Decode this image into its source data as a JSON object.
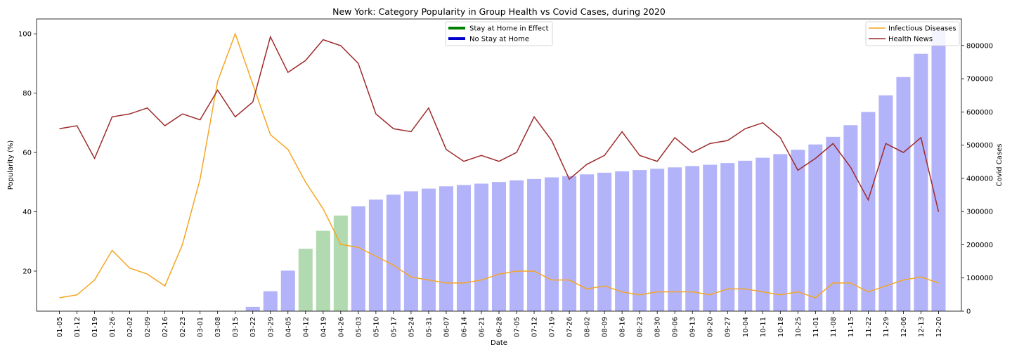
{
  "chart_data": {
    "type": "bar+line",
    "title": "New York: Category Popularity in Group Health vs Covid Cases, during 2020",
    "xlabel": "Date",
    "ylabel": "Popularity (%)",
    "y2label": "Covid Cases",
    "ylim": [
      6.5,
      105
    ],
    "y2lim": [
      0,
      880000
    ],
    "yticks": [
      20,
      40,
      60,
      80,
      100
    ],
    "y2ticks": [
      0,
      100000,
      200000,
      300000,
      400000,
      500000,
      600000,
      700000,
      800000
    ],
    "categories": [
      "01-05",
      "01-12",
      "01-19",
      "01-26",
      "02-02",
      "02-09",
      "02-16",
      "02-23",
      "03-01",
      "03-08",
      "03-15",
      "03-22",
      "03-29",
      "04-05",
      "04-12",
      "04-19",
      "04-26",
      "05-03",
      "05-10",
      "05-17",
      "05-24",
      "05-31",
      "06-07",
      "06-14",
      "06-21",
      "06-28",
      "07-05",
      "07-12",
      "07-19",
      "07-26",
      "08-02",
      "08-09",
      "08-16",
      "08-23",
      "08-30",
      "09-06",
      "09-13",
      "09-20",
      "09-27",
      "10-04",
      "10-11",
      "10-18",
      "10-25",
      "11-01",
      "11-08",
      "11-15",
      "11-22",
      "11-29",
      "12-06",
      "12-13",
      "12-20"
    ],
    "covid_cases": [
      0,
      0,
      0,
      0,
      0,
      0,
      0,
      0,
      0,
      0,
      0,
      13000,
      60000,
      122000,
      188000,
      242000,
      288000,
      316000,
      336000,
      351000,
      361000,
      369000,
      376000,
      380000,
      384000,
      389000,
      394000,
      398000,
      403000,
      407000,
      412000,
      417000,
      421000,
      425000,
      429000,
      433000,
      437000,
      441000,
      446000,
      453000,
      462000,
      473000,
      486000,
      502000,
      525000,
      560000,
      600000,
      650000,
      705000,
      775000,
      845000
    ],
    "bar_colors": {
      "stay_home": "#b2dab0",
      "no_stay_home": "#b3b3fa"
    },
    "stay_at_home_weeks": [
      "04-12",
      "04-19",
      "04-26"
    ],
    "series": [
      {
        "name": "Infectious Diseases",
        "color": "#f5a623",
        "values": [
          11,
          12,
          17,
          27,
          21,
          19,
          15,
          29,
          51,
          84,
          100,
          83,
          66,
          61,
          50,
          41,
          29,
          28,
          25,
          22,
          18,
          17,
          16,
          16,
          17,
          19,
          20,
          20,
          17,
          17,
          14,
          15,
          13,
          12,
          13,
          13,
          13,
          12,
          14,
          14,
          13,
          12,
          13,
          11,
          16,
          16,
          13,
          15,
          17,
          18,
          16
        ]
      },
      {
        "name": "Health News",
        "color": "#9e2a2b",
        "values": [
          68,
          69,
          58,
          72,
          73,
          75,
          69,
          73,
          71,
          81,
          72,
          77,
          99,
          87,
          91,
          98,
          96,
          90,
          73,
          68,
          67,
          75,
          61,
          57,
          59,
          57,
          60,
          72,
          64,
          51,
          56,
          59,
          67,
          59,
          57,
          65,
          60,
          63,
          64,
          68,
          70,
          65,
          54,
          58,
          63,
          55,
          44,
          63,
          60,
          65,
          40
        ]
      }
    ],
    "legend_left": [
      {
        "label": "Stay at Home in Effect",
        "color": "#008000"
      },
      {
        "label": "No Stay at Home",
        "color": "#0000cc"
      }
    ],
    "legend_right_position": "top-right",
    "legend_left_position": "top-center"
  }
}
